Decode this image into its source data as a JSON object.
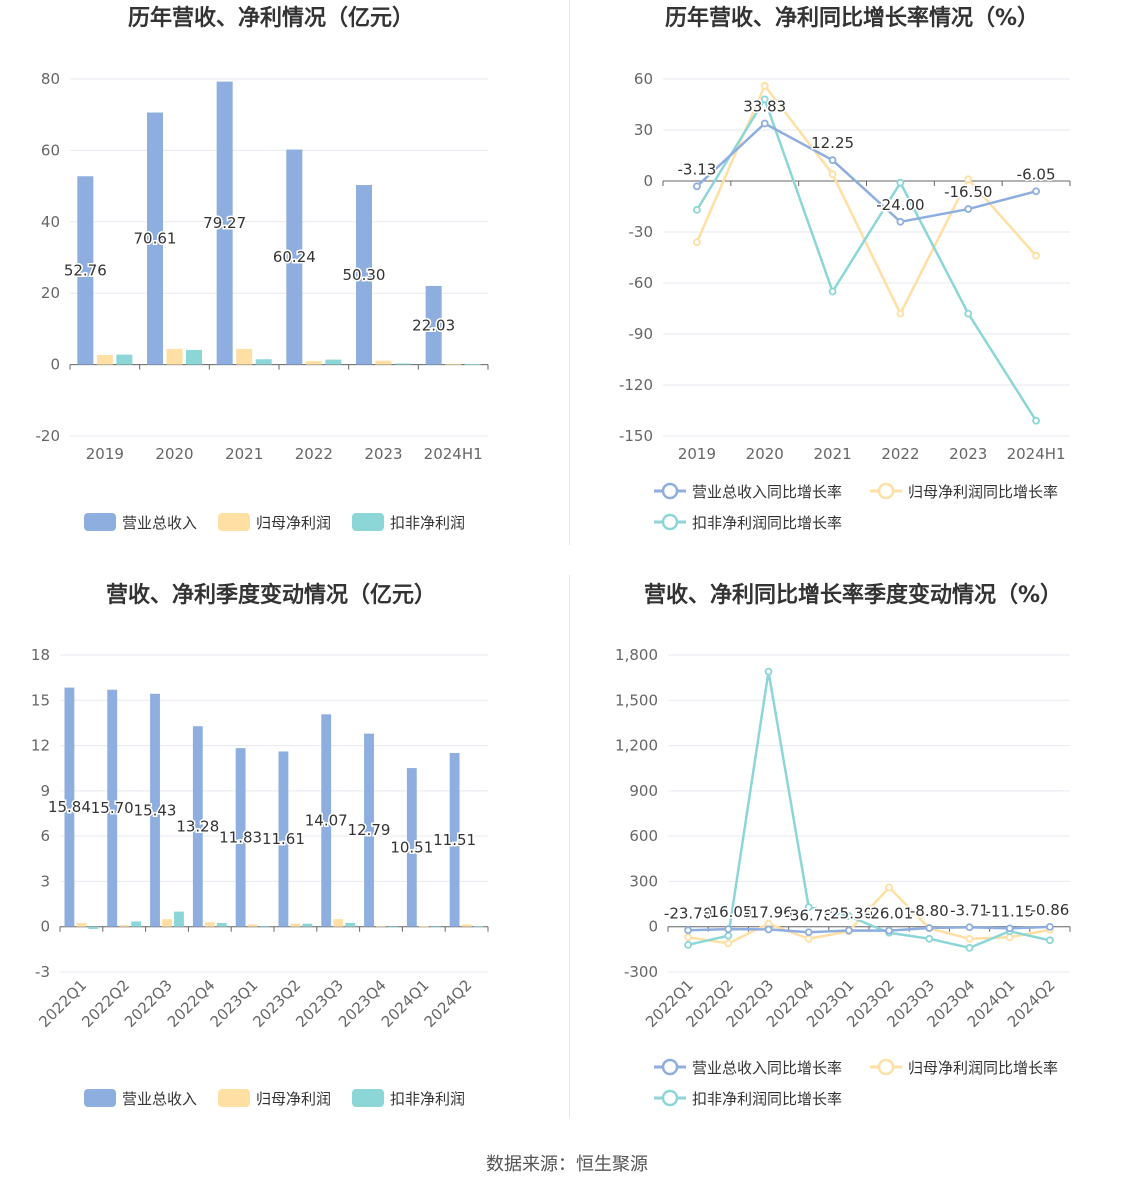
{
  "source": "数据来源：恒生聚源",
  "colors": {
    "revenue": "#8eaedf",
    "parent_profit": "#ffdfa3",
    "nonrecurring_profit": "#8dd6d8",
    "grid": "#e6e9f0",
    "axis": "#666666"
  },
  "chart_data": [
    {
      "id": "annual_amount",
      "type": "bar",
      "title": "历年营收、净利情况（亿元）",
      "categories": [
        "2019",
        "2020",
        "2021",
        "2022",
        "2023",
        "2024H1"
      ],
      "ylim": [
        -20,
        80
      ],
      "yticks": [
        -20,
        0,
        20,
        40,
        60,
        80
      ],
      "grid": true,
      "legend_position": "bottom",
      "series": [
        {
          "name": "营业总收入",
          "values": [
            52.76,
            70.61,
            79.27,
            60.24,
            50.3,
            22.03
          ],
          "labels": [
            "52.76",
            "70.61",
            "79.27",
            "60.24",
            "50.30",
            "22.03"
          ]
        },
        {
          "name": "归母净利润",
          "values": [
            2.7,
            4.4,
            4.4,
            1.0,
            1.1,
            0.2
          ]
        },
        {
          "name": "扣非净利润",
          "values": [
            2.8,
            4.1,
            1.5,
            1.4,
            0.3,
            0.1
          ]
        }
      ]
    },
    {
      "id": "annual_growth",
      "type": "line",
      "title": "历年营收、净利同比增长率情况（%）",
      "categories": [
        "2019",
        "2020",
        "2021",
        "2022",
        "2023",
        "2024H1"
      ],
      "ylim": [
        -150,
        60
      ],
      "yticks": [
        -150,
        -120,
        -90,
        -60,
        -30,
        0,
        30,
        60
      ],
      "grid": true,
      "legend_position": "bottom",
      "series": [
        {
          "name": "营业总收入同比增长率",
          "values": [
            -3.13,
            33.83,
            12.25,
            -24.0,
            -16.5,
            -6.05
          ],
          "labels": [
            "-3.13",
            "33.83",
            "12.25",
            "-24.00",
            "-16.50",
            "-6.05"
          ]
        },
        {
          "name": "归母净利润同比增长率",
          "values": [
            -36,
            56,
            4,
            -78,
            1,
            -44
          ]
        },
        {
          "name": "扣非净利润同比增长率",
          "values": [
            -17,
            48,
            -65,
            -1,
            -78,
            -141
          ]
        }
      ]
    },
    {
      "id": "quarterly_amount",
      "type": "bar",
      "title": "营收、净利季度变动情况（亿元）",
      "categories": [
        "2022Q1",
        "2022Q2",
        "2022Q3",
        "2022Q4",
        "2023Q1",
        "2023Q2",
        "2023Q3",
        "2023Q4",
        "2024Q1",
        "2024Q2"
      ],
      "ylim": [
        -3,
        18
      ],
      "yticks": [
        -3,
        0,
        3,
        6,
        9,
        12,
        15,
        18
      ],
      "grid": true,
      "legend_position": "bottom",
      "series": [
        {
          "name": "营业总收入",
          "values": [
            15.84,
            15.7,
            15.43,
            13.28,
            11.83,
            11.61,
            14.07,
            12.79,
            10.51,
            11.51
          ],
          "labels": [
            "15.84",
            "15.70",
            "15.43",
            "13.28",
            "11.83",
            "11.61",
            "14.07",
            "12.79",
            "10.51",
            "11.51"
          ]
        },
        {
          "name": "归母净利润",
          "values": [
            0.25,
            0.1,
            0.5,
            0.3,
            0.15,
            0.2,
            0.5,
            0.05,
            0.03,
            0.15
          ]
        },
        {
          "name": "扣非净利润",
          "values": [
            -0.15,
            0.35,
            1.0,
            0.25,
            0.05,
            0.2,
            0.25,
            -0.05,
            -0.05,
            0.02
          ]
        }
      ]
    },
    {
      "id": "quarterly_growth",
      "type": "line",
      "title": "营收、净利同比增长率季度变动情况（%）",
      "categories": [
        "2022Q1",
        "2022Q2",
        "2022Q3",
        "2022Q4",
        "2023Q1",
        "2023Q2",
        "2023Q3",
        "2023Q4",
        "2024Q1",
        "2024Q2"
      ],
      "ylim": [
        -300,
        1800
      ],
      "yticks": [
        -300,
        0,
        300,
        600,
        900,
        1200,
        1500,
        1800
      ],
      "ytick_labels": [
        "-300",
        "0",
        "300",
        "600",
        "900",
        "1,200",
        "1,500",
        "1,800"
      ],
      "grid": true,
      "legend_position": "bottom",
      "series": [
        {
          "name": "营业总收入同比增长率",
          "values": [
            -23.7,
            -16.05,
            -17.96,
            -36.78,
            -25.3,
            -26.01,
            -8.8,
            -3.71,
            -11.15,
            -0.86
          ],
          "labels": [
            "-23.70",
            "-16.05",
            "-17.96",
            "-36.78",
            "-25.30",
            "-26.01",
            "-8.80",
            "-3.71",
            "-11.15",
            "-0.86"
          ]
        },
        {
          "name": "归母净利润同比增长率",
          "values": [
            -70,
            -110,
            20,
            -80,
            -30,
            260,
            -10,
            -80,
            -70,
            -20
          ]
        },
        {
          "name": "扣非净利润同比增长率",
          "values": [
            -120,
            -60,
            1690,
            130,
            70,
            -40,
            -80,
            -140,
            -30,
            -90
          ]
        }
      ]
    }
  ]
}
